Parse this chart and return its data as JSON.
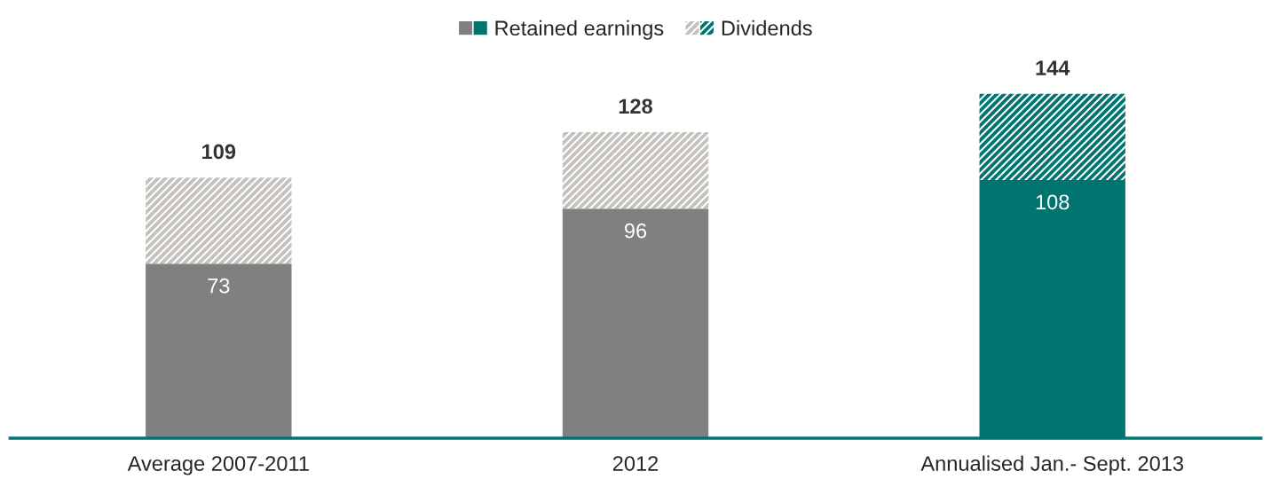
{
  "chart_data": {
    "type": "bar",
    "stacked": true,
    "categories": [
      "Average 2007-2011",
      "2012",
      "Annualised Jan.- Sept. 2013"
    ],
    "series": [
      {
        "name": "Retained earnings",
        "colors": [
          "#808080",
          "#808080",
          "#00756f"
        ],
        "values": [
          73,
          96,
          108
        ],
        "value_labels": [
          "73",
          "96",
          "108"
        ]
      },
      {
        "name": "Dividends",
        "colors": [
          "#c4c0bb",
          "#c4c0bb",
          "#00756f"
        ],
        "values": [
          36,
          32,
          36
        ]
      }
    ],
    "totals": [
      "109",
      "128",
      "144"
    ],
    "tick_labels": "x",
    "legend": "top",
    "grid": false
  }
}
